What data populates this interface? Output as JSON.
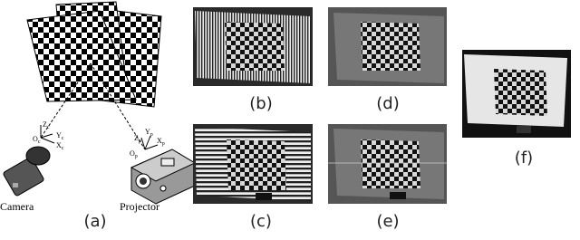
{
  "panel_labels": [
    "(a)",
    "(b)",
    "(c)",
    "(d)",
    "(e)",
    "(f)"
  ],
  "camera_label": "Camera",
  "projector_label": "Projector",
  "camera_axes": [
    {
      "name": "Z",
      "sub": "c"
    },
    {
      "name": "O",
      "sub": "c"
    },
    {
      "name": "Y",
      "sub": "c"
    },
    {
      "name": "X",
      "sub": "c"
    }
  ],
  "projector_axes": [
    {
      "name": "Z",
      "sub": "p"
    },
    {
      "name": "Y",
      "sub": "p"
    },
    {
      "name": "O",
      "sub": "p"
    },
    {
      "name": "X",
      "sub": "p"
    }
  ]
}
